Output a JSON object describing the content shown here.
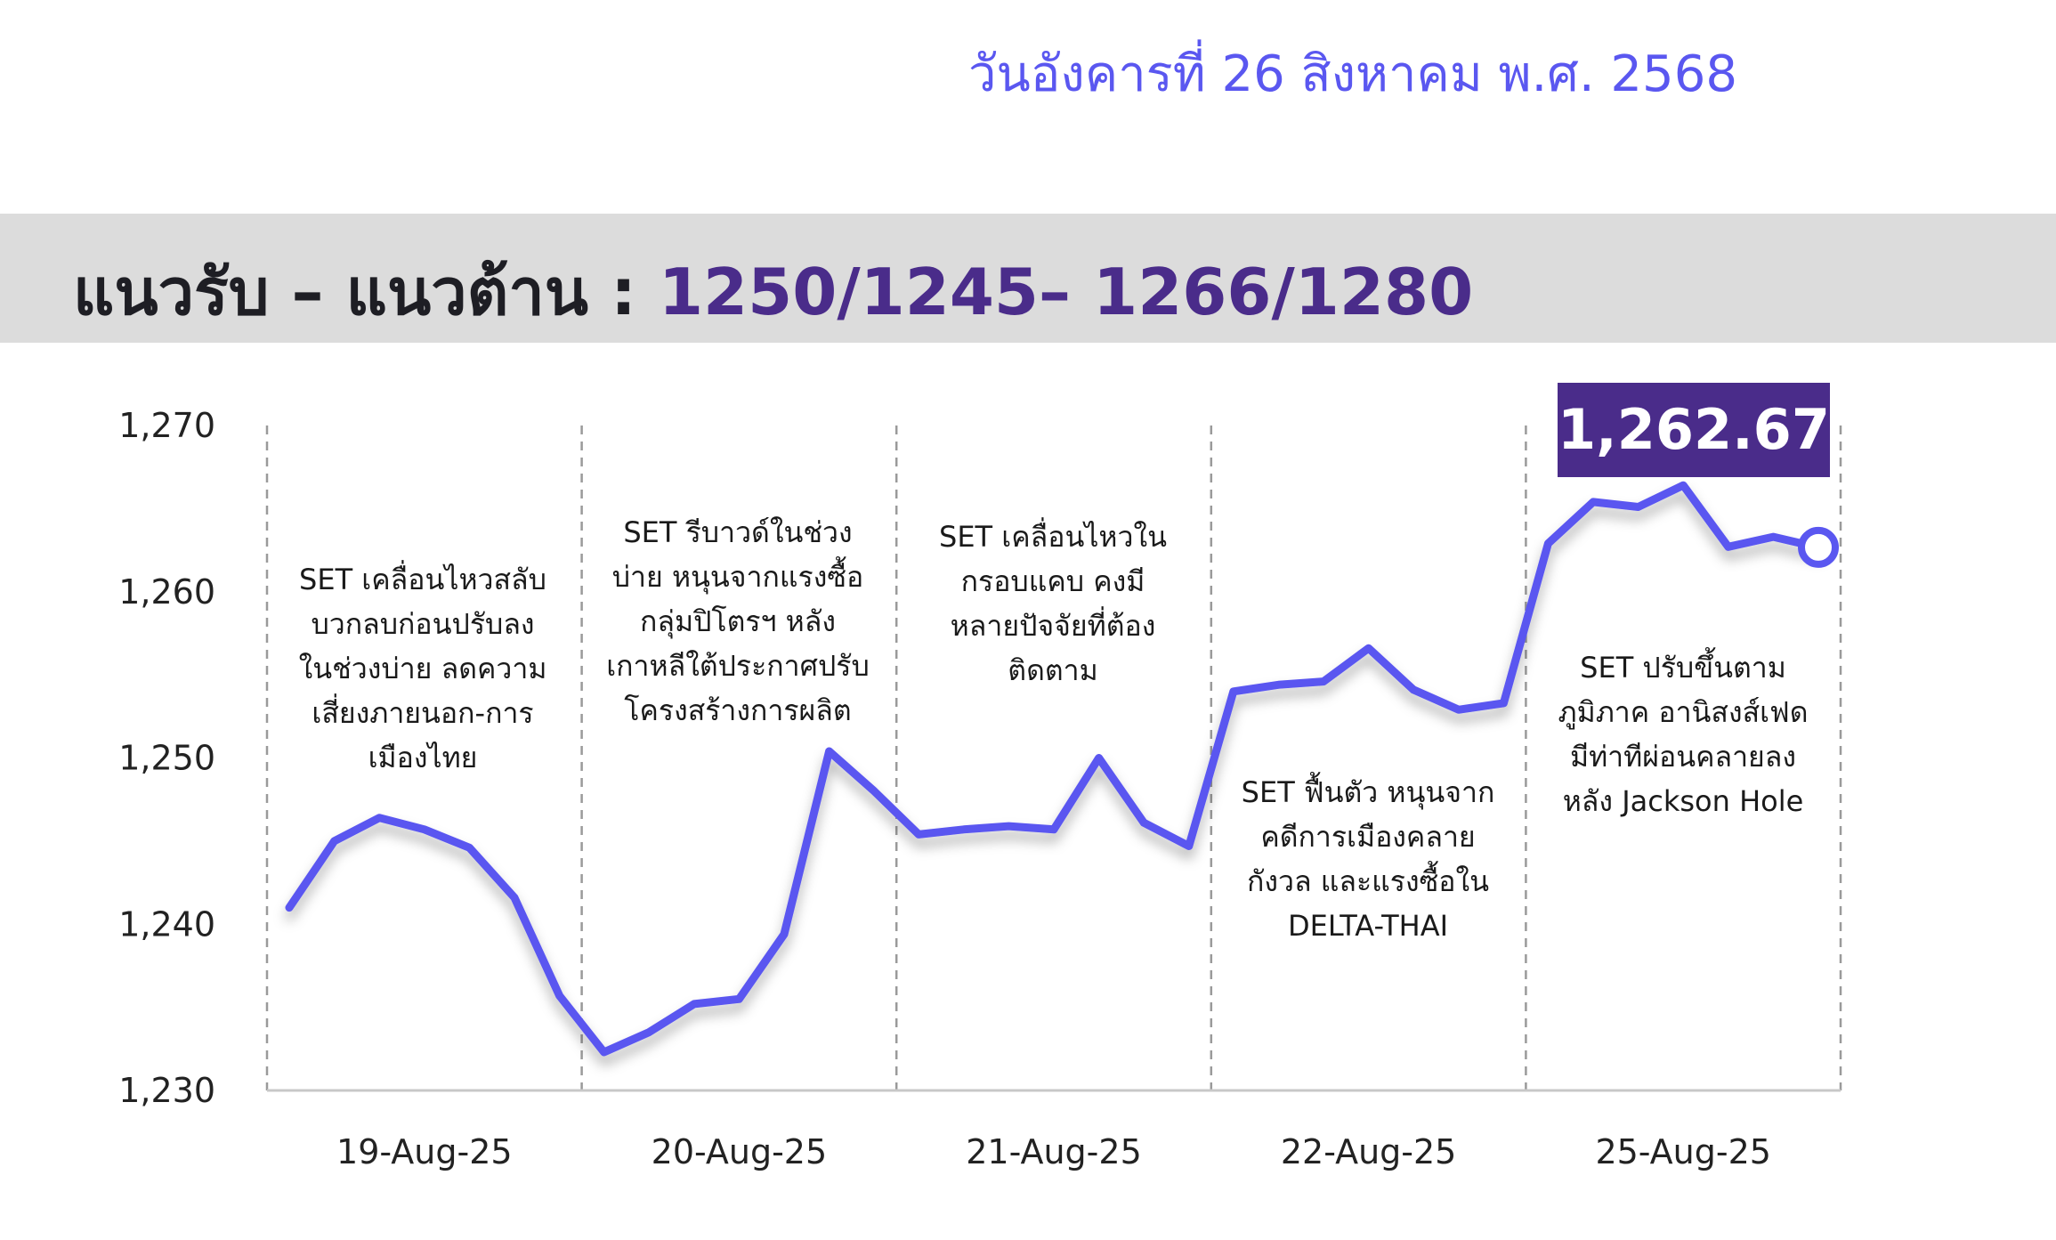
{
  "header": {
    "date": "วันอังคารที่ 26 สิงหาคม พ.ศ. 2568",
    "sr_prefix": "แนวรับ – แนวต้าน : ",
    "sr_levels": "1250/1245– 1266/1280"
  },
  "colors": {
    "line": "#5a57f0",
    "accent": "#4a2c8a",
    "band": "#dcdcdc",
    "divider": "#9a9a9a"
  },
  "chart_data": {
    "type": "line",
    "y_ticks": [
      "1,270",
      "1,260",
      "1,250",
      "1,240",
      "1,230"
    ],
    "ylim": [
      1230,
      1270
    ],
    "categories": [
      "19-Aug-25",
      "20-Aug-25",
      "21-Aug-25",
      "22-Aug-25",
      "25-Aug-25"
    ],
    "series": [
      {
        "values": [
          [
            1241.0,
            1245.0,
            1246.4,
            1245.7,
            1244.6,
            1241.6,
            1235.7
          ],
          [
            1232.3,
            1233.5,
            1235.2,
            1235.5,
            1239.4,
            1250.4,
            1248.0
          ],
          [
            1245.4,
            1245.7,
            1245.9,
            1245.7,
            1250.0,
            1246.1,
            1244.7
          ],
          [
            1254.0,
            1254.4,
            1254.6,
            1256.6,
            1254.1,
            1252.9,
            1253.3
          ],
          [
            1262.9,
            1265.4,
            1265.1,
            1266.4,
            1262.7,
            1263.3,
            1262.67
          ]
        ]
      }
    ],
    "last_value": "1,262.67",
    "annotations": [
      "SET เคลื่อนไหวสลับ\nบวกลบก่อนปรับลง\nในช่วงบ่าย ลดความ\nเสี่ยงภายนอก-การ\nเมืองไทย",
      "SET รีบาวด์ในช่วง\nบ่าย หนุนจากแรงซื้อ\nกลุ่มปิโตรฯ หลัง\nเกาหลีใต้ประกาศปรับ\nโครงสร้างการผลิต",
      "SET เคลื่อนไหวใน\nกรอบแคบ คงมี\nหลายปัจจัยที่ต้อง\nติดตาม",
      "SET ฟื้นตัว หนุนจาก\nคดีการเมืองคลาย\nกังวล และแรงซื้อใน\nDELTA-THAI",
      "SET ปรับขึ้นตาม\nภูมิภาค อานิสงส์เฟด\nมีท่าทีผ่อนคลายลง\nหลัง Jackson Hole"
    ]
  }
}
